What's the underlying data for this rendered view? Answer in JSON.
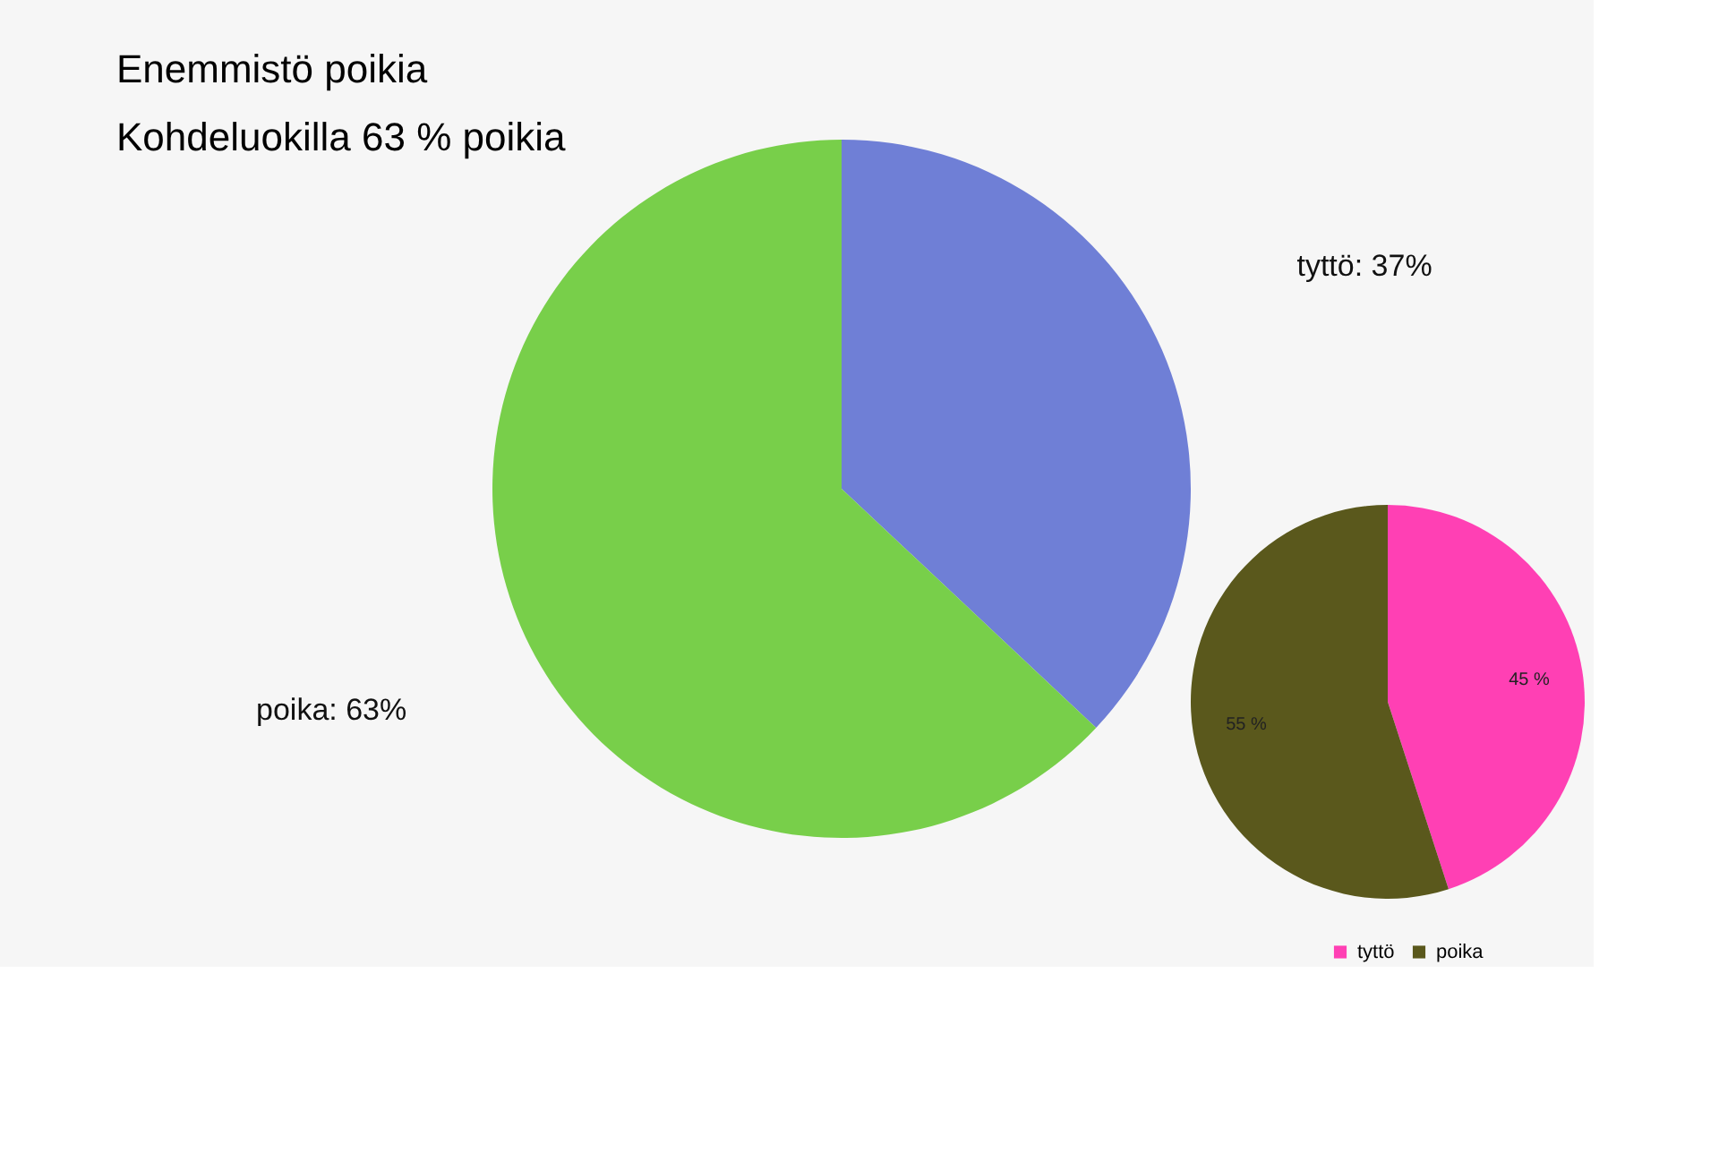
{
  "chart_data": [
    {
      "type": "pie",
      "title": "Enemmistö poikia",
      "subtitle": "Kohdeluokilla 63 % poikia",
      "categories": [
        "tyttö",
        "poika"
      ],
      "values": [
        37,
        63
      ],
      "colors": [
        "#6f7fd6",
        "#78cf4a"
      ],
      "value_labels": [
        ": 37%",
        ": 63%"
      ]
    },
    {
      "type": "pie",
      "categories": [
        "tyttö",
        "poika"
      ],
      "values": [
        45,
        55
      ],
      "colors": [
        "#ff40b4",
        "#5a581c"
      ],
      "value_labels": [
        "45 %",
        "55 %"
      ],
      "legend": "bottom"
    }
  ]
}
